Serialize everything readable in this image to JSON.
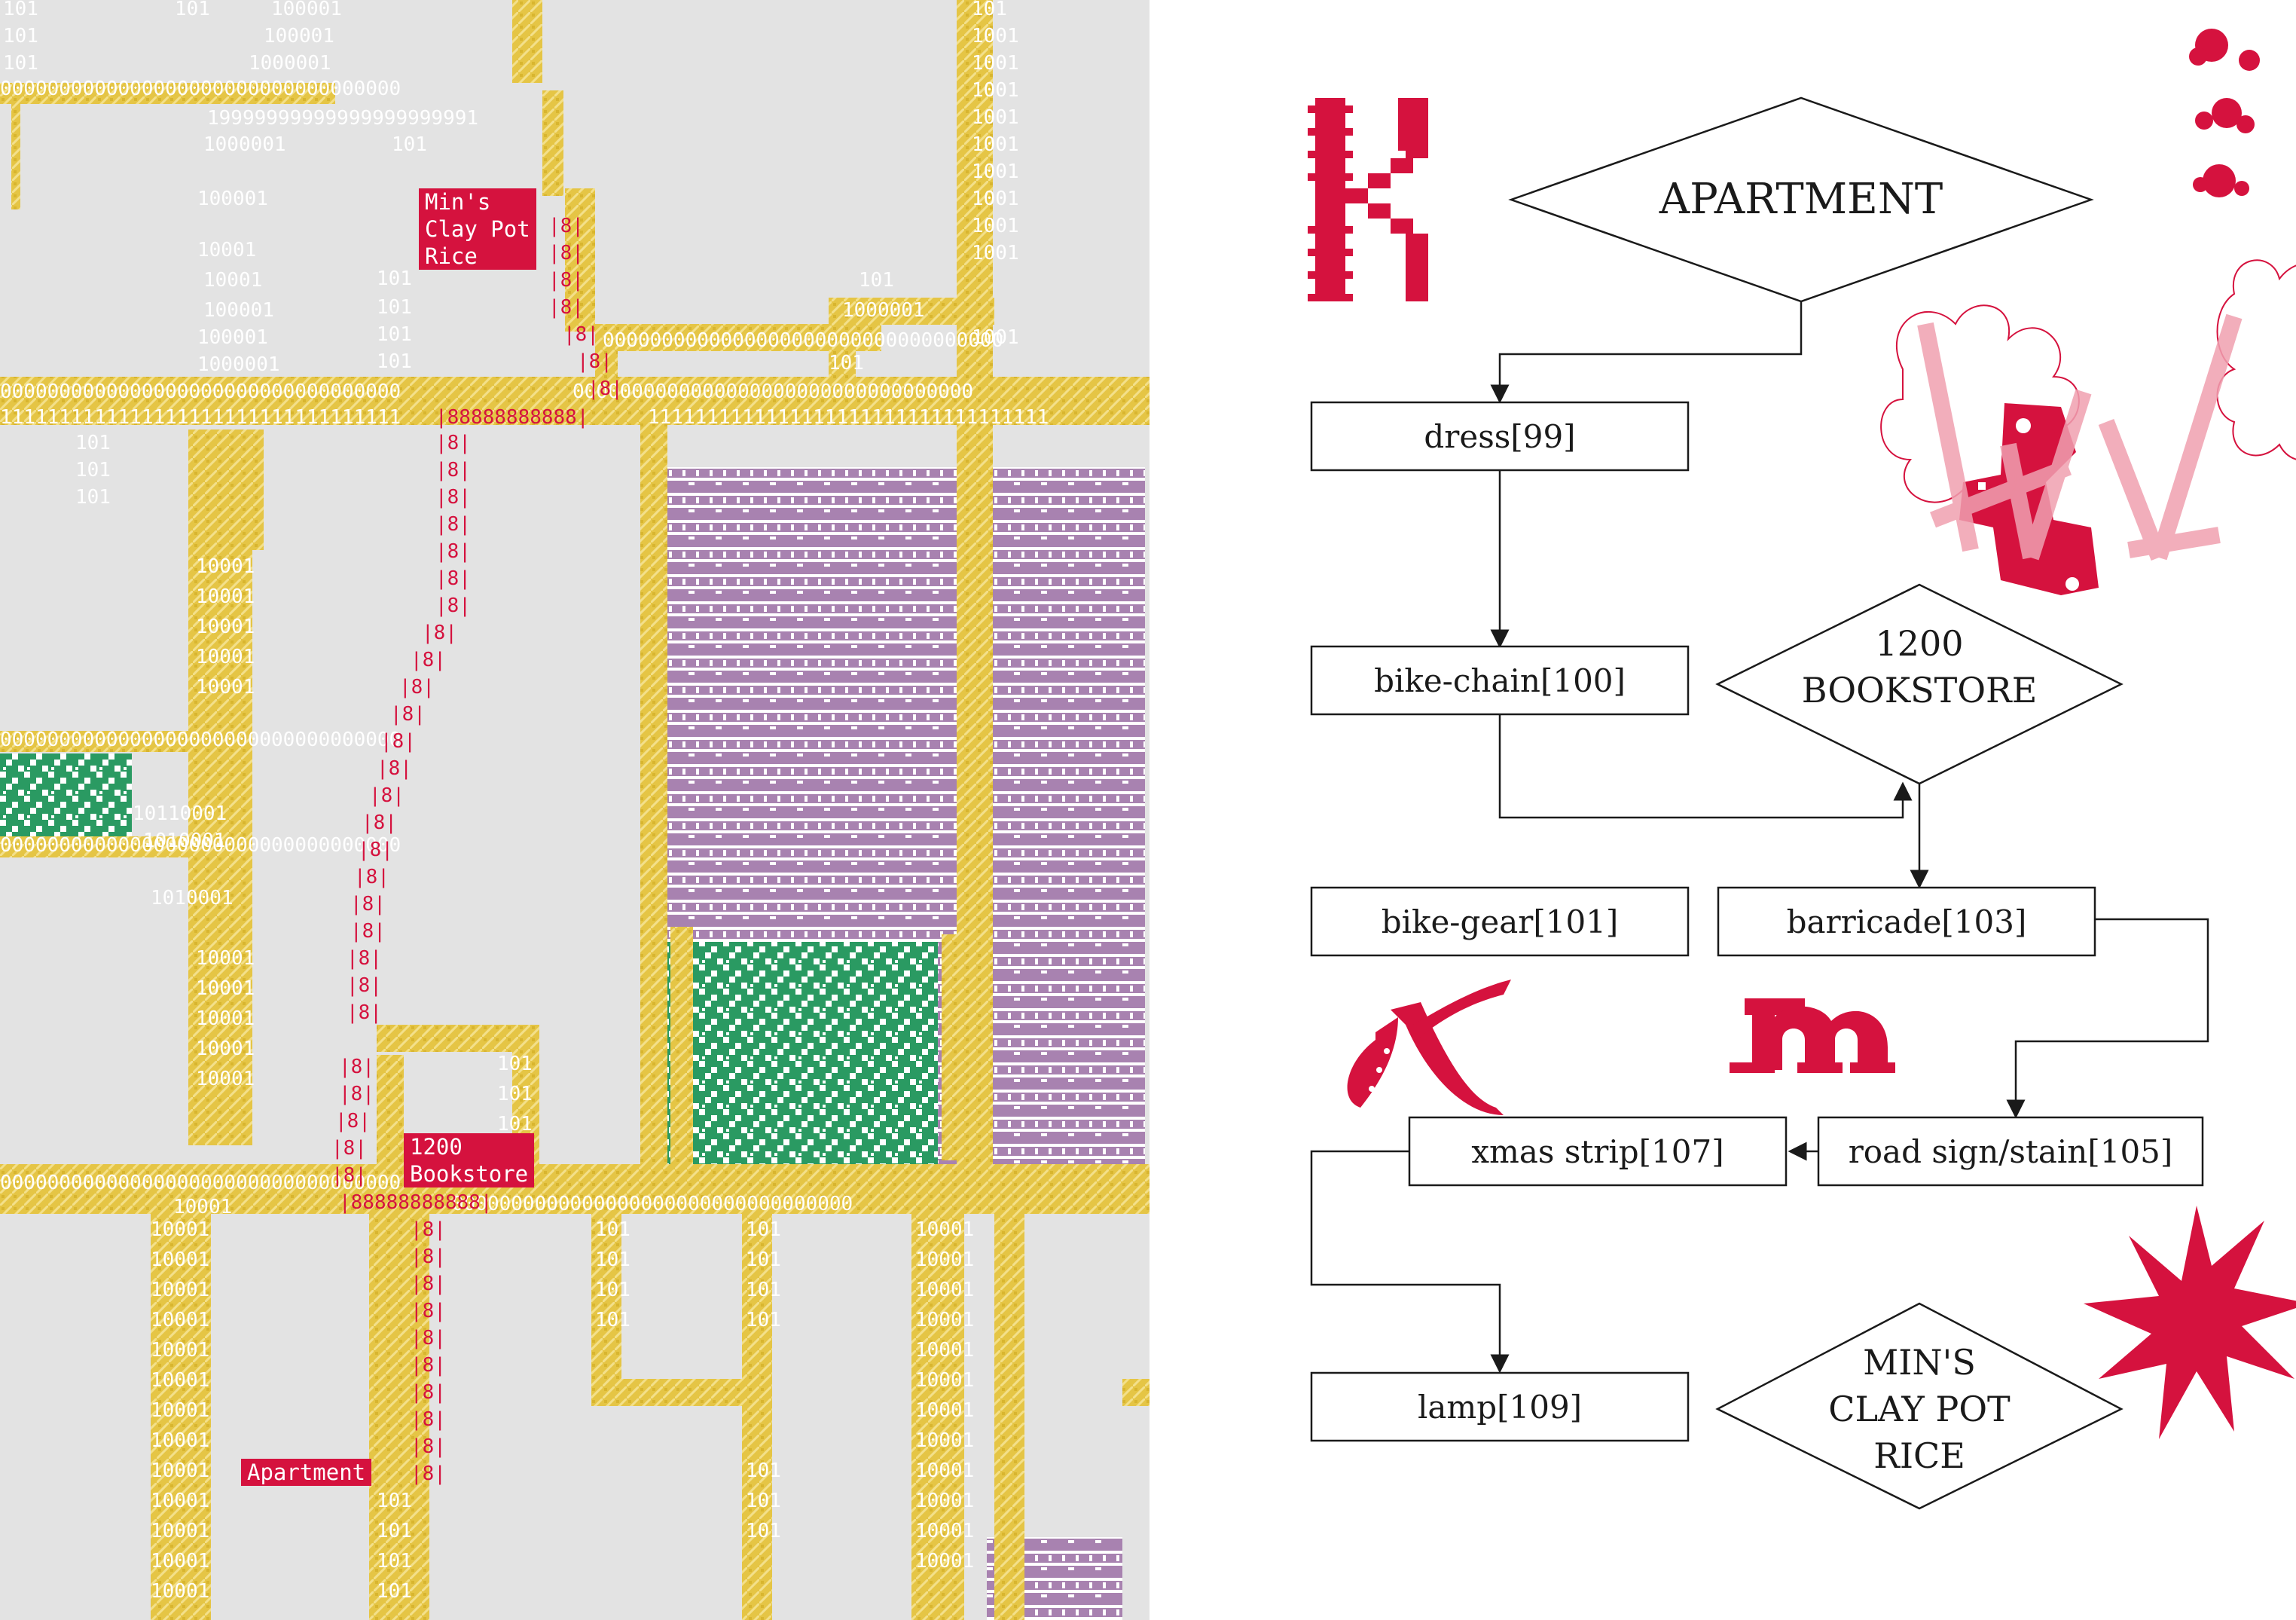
{
  "map": {
    "labels": {
      "clay_pot": "Min's\nClay Pot\nRice",
      "bookstore": "1200\nBookstore",
      "apartment": "Apartment"
    },
    "binary_text": {
      "n1": "101",
      "n2": "1001",
      "n3": "10001",
      "n4": "100001",
      "n5": "1000001",
      "n6": "1010001",
      "n7": "10110001",
      "zeros": "0000000000000000000000000000000000",
      "ones": "1111111111111111111111111111111111",
      "nines": "19999999999999999999991",
      "eights": "|8|",
      "eights_long": "|88888888888|"
    },
    "colors": {
      "background": "#e3e3e3",
      "road": "#e5c545",
      "route": "#d5123e",
      "purple_pattern": "#a882b0",
      "green_pattern": "#2a9a62"
    }
  },
  "flowchart": {
    "nodes": {
      "apartment": "APARTMENT",
      "dress": "dress[99]",
      "bike_chain": "bike-chain[100]",
      "bookstore_line1": "1200",
      "bookstore_line2": "BOOKSTORE",
      "bike_gear": "bike-gear[101]",
      "barricade": "barricade[103]",
      "xmas_strip": "xmas strip[107]",
      "road_sign": "road sign/stain[105]",
      "lamp": "lamp[109]",
      "minsrice_line1": "MIN'S",
      "minsrice_line2": "CLAY POT",
      "minsrice_line3": "RICE"
    },
    "colors": {
      "ink": "#1a1a1a",
      "accent": "#d5123e",
      "accent_light": "#f2a7b3"
    }
  }
}
